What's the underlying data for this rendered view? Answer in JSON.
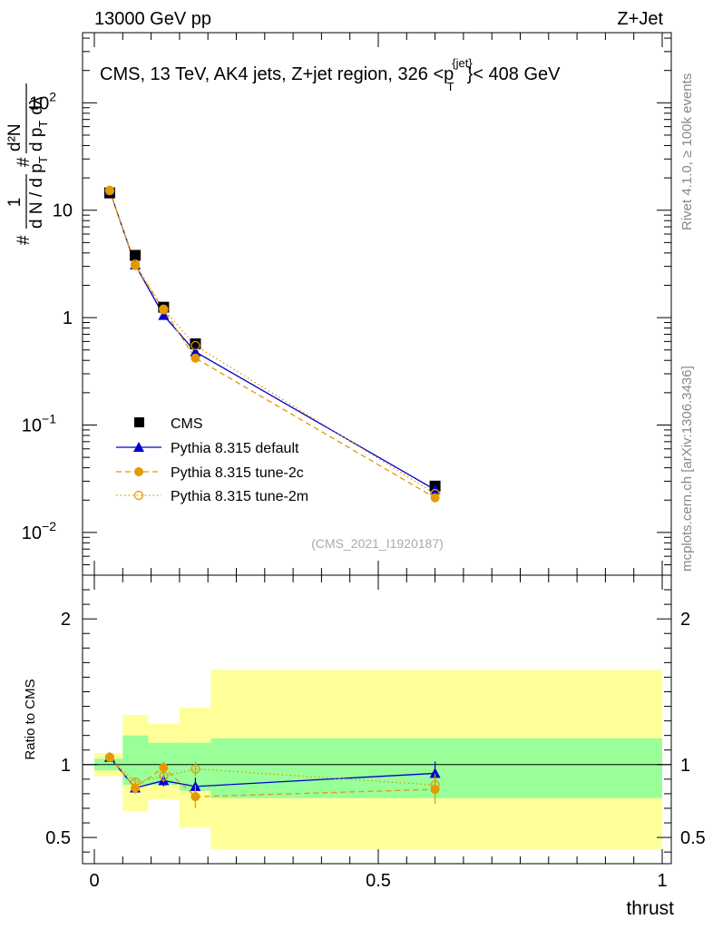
{
  "header": {
    "left": "13000 GeV pp",
    "right": "Z+Jet"
  },
  "side_text": {
    "rivet": "Rivet 4.1.0, ≥ 100k events",
    "mcplots": "mcplots.cern.ch [arXiv:1306.3436]"
  },
  "chart_data": [
    {
      "type": "line",
      "title": "CMS, 13 TeV, AK4 jets, Z+jet region, 326 < p_T^{jet} < 408 GeV",
      "title_parts": {
        "main": "CMS, 13 TeV, AK4 jets, Z+jet region, 326 <p",
        "sup": "{jet}",
        "sub": "T",
        "tail": "}< 408 GeV"
      },
      "ylabel": "1/dN/dp_T d^2N/dp_T dλ",
      "ylabel_parts": {
        "hash1": "#",
        "one": "1",
        "dN": "d N / d p",
        "sub_T1": "T",
        "hash2": "#",
        "d2N": "d²N",
        "dpT": "d p",
        "sub_T2": "T",
        "dlambda": "dλ"
      },
      "yscale": "log",
      "ylim": [
        0.004,
        450
      ],
      "xlim": [
        -0.02,
        1.0
      ],
      "ytick_labels": [
        {
          "value": 100,
          "base": "10",
          "exp": "2"
        },
        {
          "value": 10,
          "base": "10",
          "exp": ""
        },
        {
          "value": 1,
          "base": "1",
          "exp": ""
        },
        {
          "value": 0.1,
          "base": "10",
          "exp": "−1"
        },
        {
          "value": 0.01,
          "base": "10",
          "exp": "−2"
        }
      ],
      "watermark": "(CMS_2021_I1920187)",
      "legend_position": "bottom-left",
      "series": [
        {
          "name": "CMS",
          "color": "#000000",
          "marker": "square",
          "x": [
            0.027,
            0.072,
            0.122,
            0.178,
            0.6
          ],
          "y": [
            14.5,
            3.8,
            1.25,
            0.57,
            0.027
          ]
        },
        {
          "name": "Pythia 8.315 default",
          "color": "#0000cc",
          "marker": "triangle",
          "line": "solid",
          "x": [
            0.027,
            0.072,
            0.122,
            0.178,
            0.6
          ],
          "y": [
            15.2,
            3.1,
            1.05,
            0.48,
            0.025
          ]
        },
        {
          "name": "Pythia 8.315 tune-2c",
          "color": "#e39a00",
          "marker": "circle",
          "line": "dashed",
          "x": [
            0.027,
            0.072,
            0.122,
            0.178,
            0.6
          ],
          "y": [
            15.2,
            3.05,
            1.18,
            0.42,
            0.021
          ]
        },
        {
          "name": "Pythia 8.315 tune-2m",
          "color": "#e39a00",
          "marker": "open-circle",
          "line": "dotted",
          "x": [
            0.027,
            0.072,
            0.122,
            0.178,
            0.6
          ],
          "y": [
            15.3,
            3.15,
            1.2,
            0.55,
            0.023
          ]
        }
      ]
    },
    {
      "type": "line",
      "ylabel": "Ratio to CMS",
      "xlabel": "thrust",
      "ylim": [
        0.32,
        2.3
      ],
      "xlim": [
        -0.02,
        1.0
      ],
      "yticks": [
        0.5,
        1,
        2
      ],
      "ytick_labels": [
        "0.5",
        "1",
        "2"
      ],
      "xticks": [
        0,
        0.5,
        1
      ],
      "xtick_labels": [
        "0",
        "0.5",
        "1"
      ],
      "bin_edges": [
        0,
        0.05,
        0.095,
        0.15,
        0.205,
        1.0
      ],
      "band_inner": [
        [
          0.96,
          1.04
        ],
        [
          0.86,
          1.2
        ],
        [
          0.86,
          1.15
        ],
        [
          0.82,
          1.15
        ],
        [
          0.77,
          1.18
        ]
      ],
      "band_outer": [
        [
          0.92,
          1.08
        ],
        [
          0.68,
          1.34
        ],
        [
          0.76,
          1.28
        ],
        [
          0.57,
          1.39
        ],
        [
          0.42,
          1.65
        ]
      ],
      "series": [
        {
          "name": "Pythia 8.315 default",
          "color": "#0000cc",
          "marker": "triangle",
          "line": "solid",
          "x": [
            0.027,
            0.072,
            0.122,
            0.178,
            0.6
          ],
          "y": [
            1.05,
            0.84,
            0.89,
            0.85,
            0.94
          ],
          "err": [
            0.01,
            0.03,
            0.04,
            0.06,
            0.08
          ]
        },
        {
          "name": "Pythia 8.315 tune-2c",
          "color": "#e39a00",
          "marker": "circle",
          "line": "dashed",
          "x": [
            0.027,
            0.072,
            0.122,
            0.178,
            0.6
          ],
          "y": [
            1.05,
            0.84,
            0.98,
            0.78,
            0.83
          ],
          "err": [
            0.01,
            0.04,
            0.04,
            0.08,
            0.1
          ]
        },
        {
          "name": "Pythia 8.315 tune-2m",
          "color": "#e39a00",
          "marker": "open-circle",
          "line": "dotted",
          "x": [
            0.027,
            0.072,
            0.122,
            0.178,
            0.6
          ],
          "y": [
            1.05,
            0.88,
            0.92,
            0.97,
            0.86
          ],
          "err": [
            0.01,
            0.03,
            0.04,
            0.05,
            0.08
          ]
        }
      ]
    }
  ]
}
